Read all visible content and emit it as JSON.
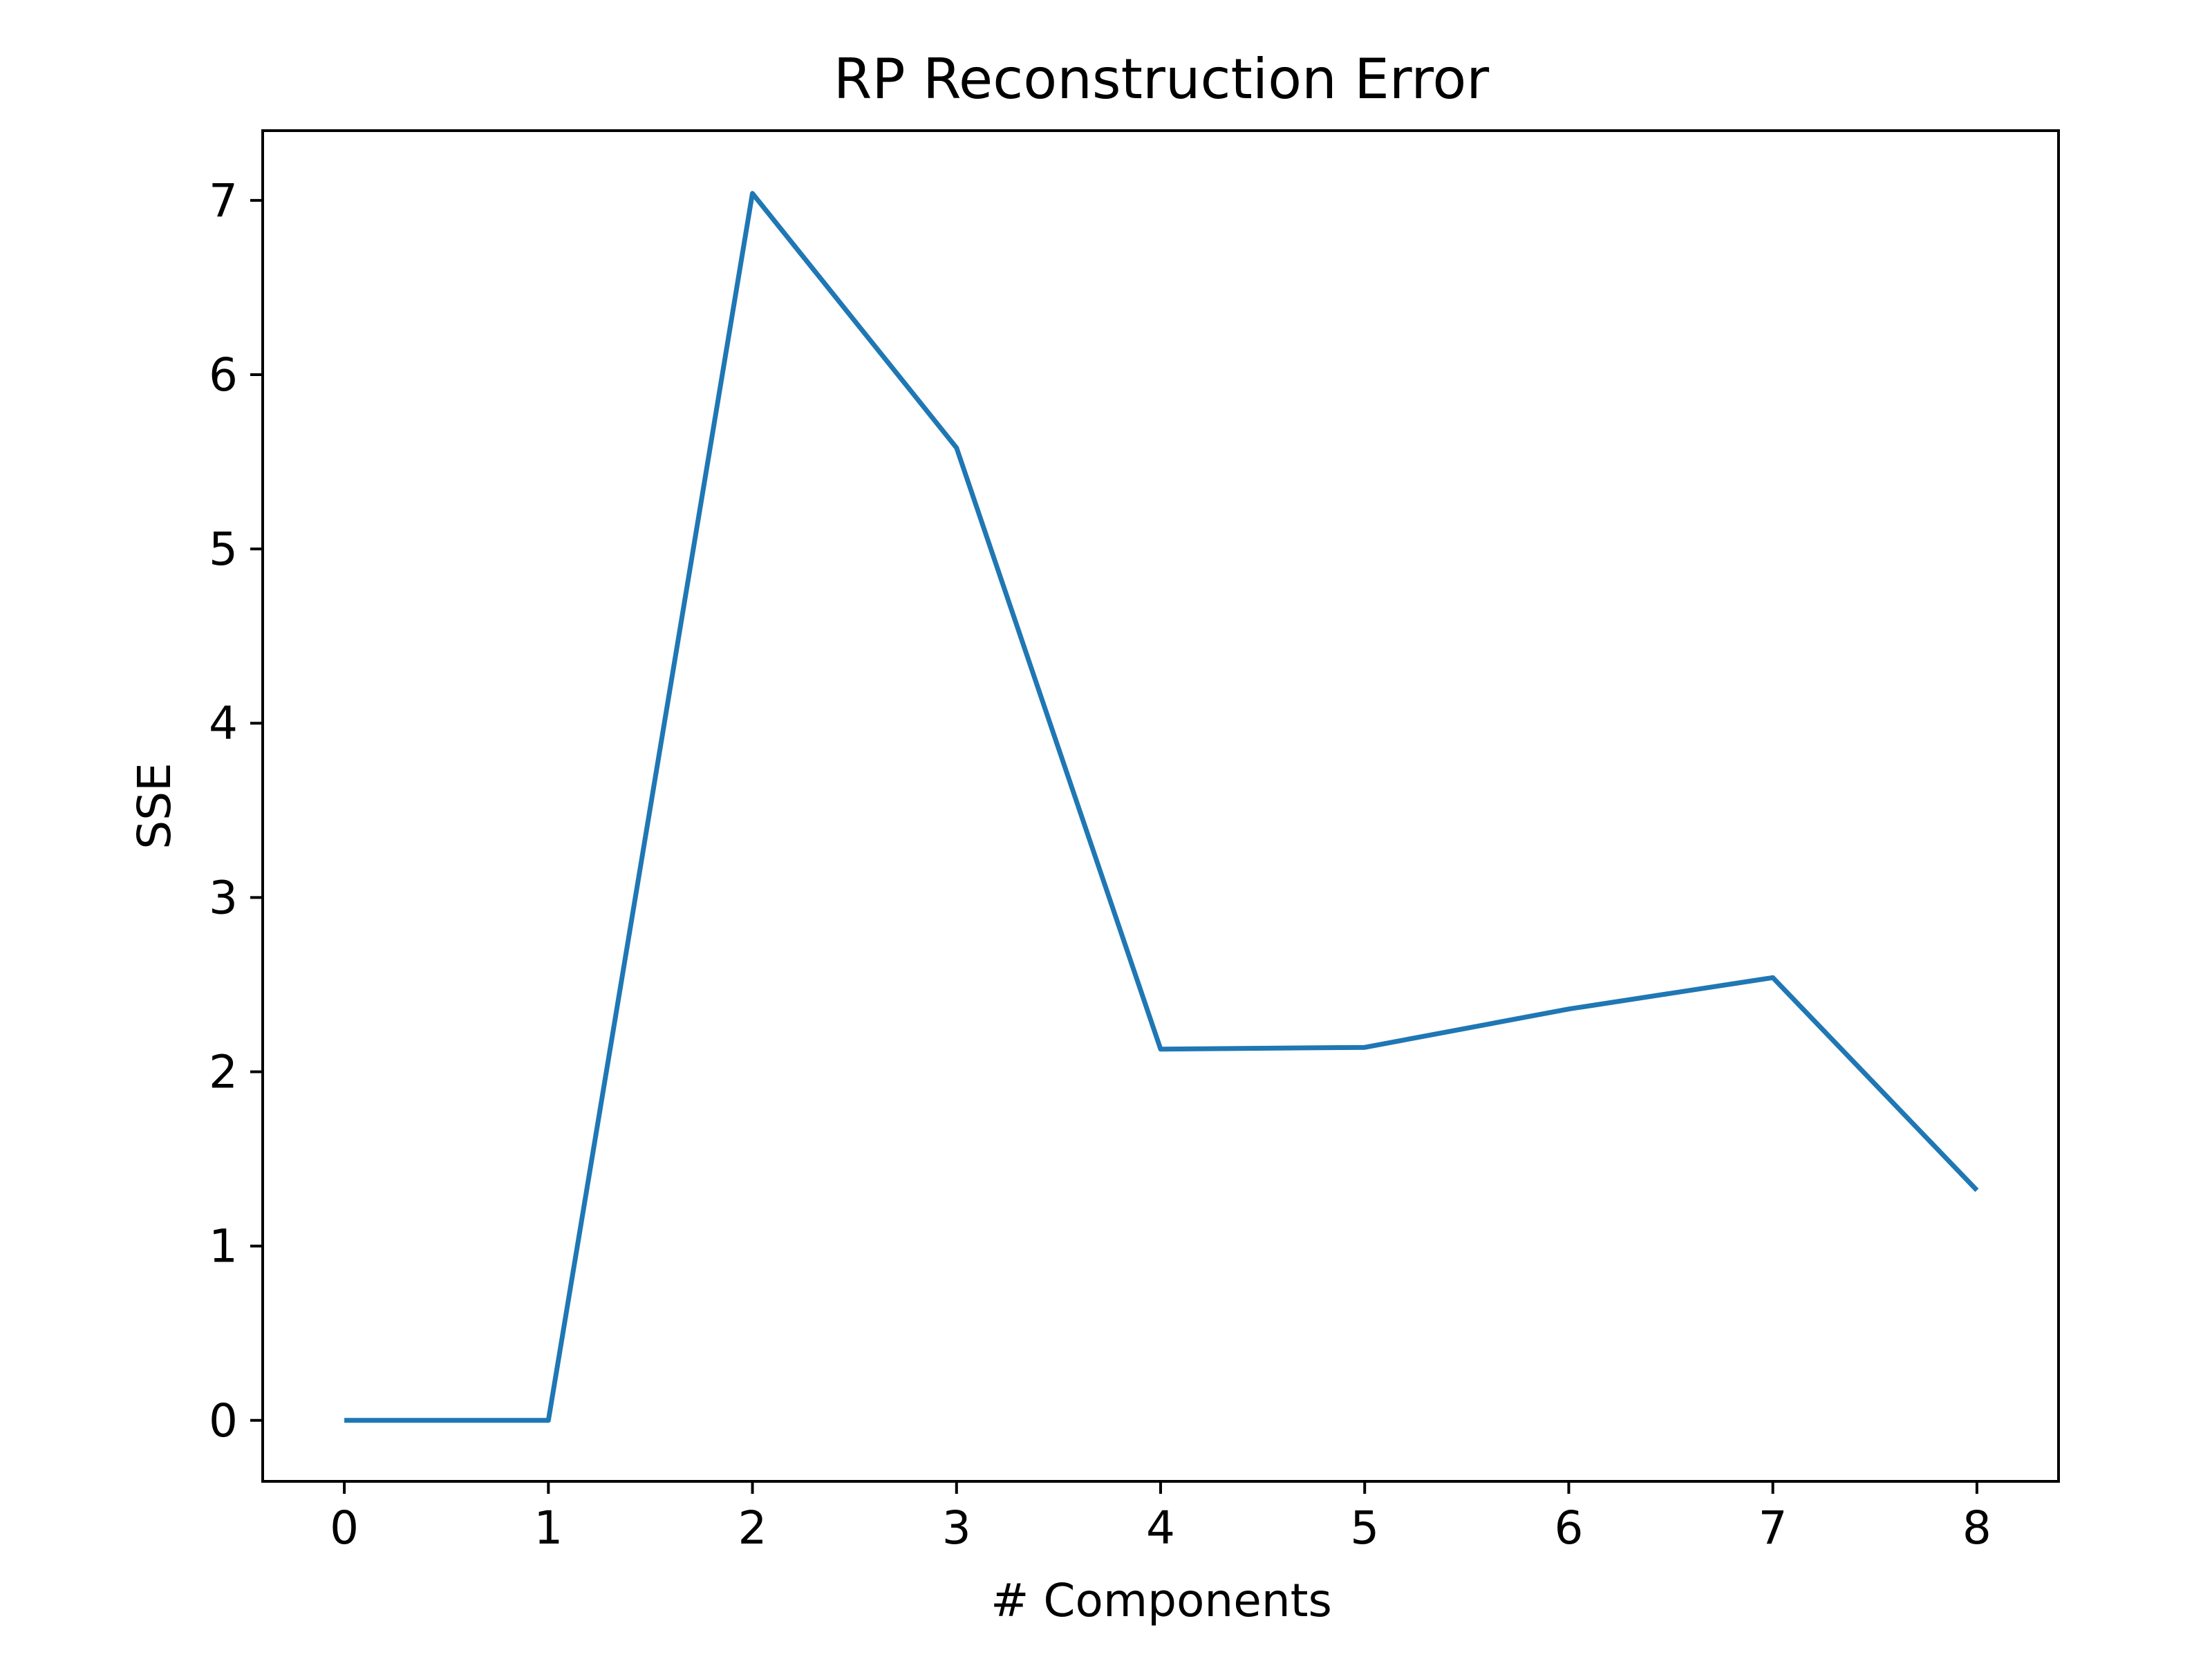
{
  "chart_data": {
    "type": "line",
    "title": "RP Reconstruction Error",
    "xlabel": "# Components",
    "ylabel": "SSE",
    "xlim": [
      -0.4,
      8.4
    ],
    "ylim": [
      -0.35,
      7.4
    ],
    "xticks": [
      0,
      1,
      2,
      3,
      4,
      5,
      6,
      7,
      8
    ],
    "xtick_labels": [
      "0",
      "1",
      "2",
      "3",
      "4",
      "5",
      "6",
      "7",
      "8"
    ],
    "yticks": [
      0,
      1,
      2,
      3,
      4,
      5,
      6,
      7
    ],
    "ytick_labels": [
      "0",
      "1",
      "2",
      "3",
      "4",
      "5",
      "6",
      "7"
    ],
    "grid": false,
    "series": [
      {
        "color": "#1f77b4",
        "x": [
          0,
          1,
          2,
          3,
          4,
          5,
          6,
          7,
          8
        ],
        "y": [
          0.0,
          0.0,
          7.04,
          5.58,
          2.13,
          2.14,
          2.36,
          2.54,
          1.32
        ]
      }
    ]
  }
}
